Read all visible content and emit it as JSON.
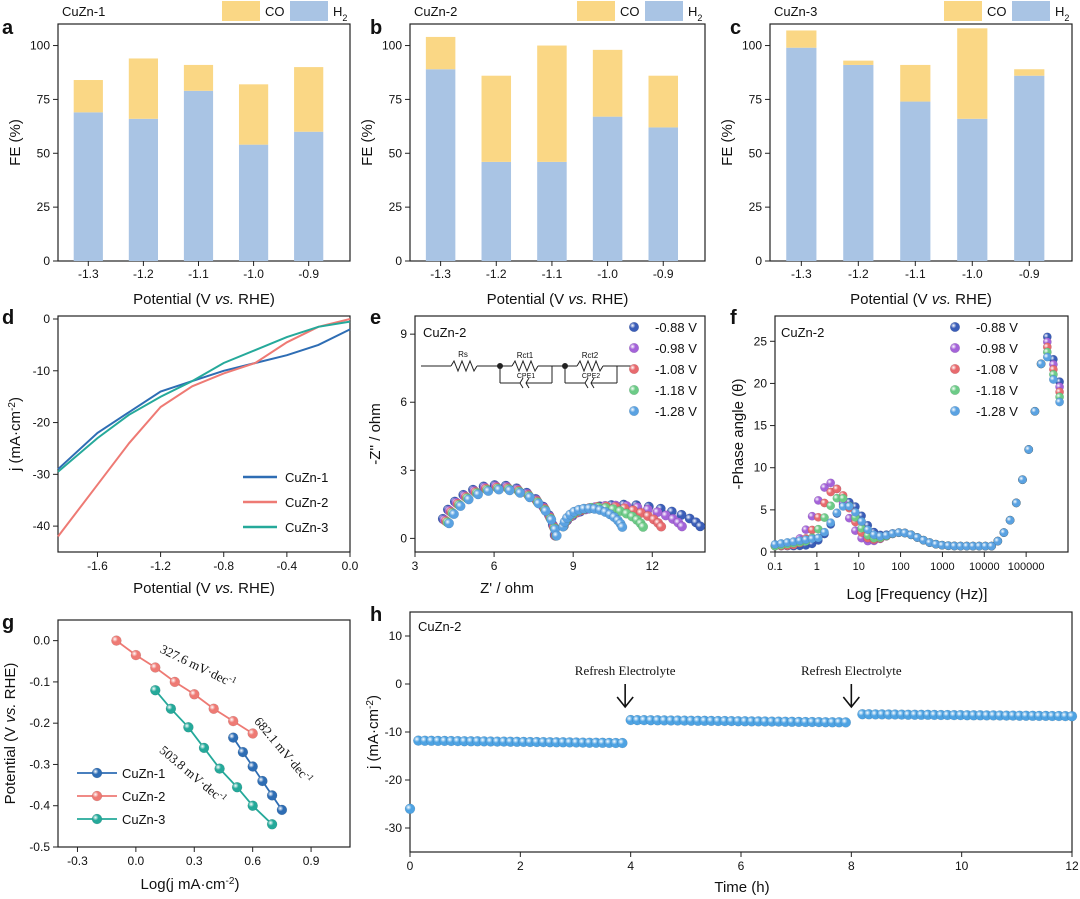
{
  "colors": {
    "co": "#FAD785",
    "h2": "#A9C4E4",
    "cuzn1": "#2E6DB4",
    "cuzn2": "#EE7A74",
    "cuzn3": "#25A99A",
    "eis": [
      "#3A5DB8",
      "#A463D9",
      "#E86A6E",
      "#6CCB87",
      "#5AA2E2"
    ],
    "stab": "#4EA3E3"
  },
  "chart_data": [
    {
      "panel": "a",
      "type": "bar",
      "stacked": true,
      "title": "CuZn-1",
      "xlabel": "Potential (V vs. RHE)",
      "ylabel": "FE (%)",
      "categories": [
        "-1.3",
        "-1.2",
        "-1.1",
        "-1.0",
        "-0.9"
      ],
      "ylim": [
        0,
        110
      ],
      "yticks": [
        "0",
        "25",
        "50",
        "75",
        "100"
      ],
      "legend": [
        "CO",
        "H2"
      ],
      "series": [
        {
          "name": "H2",
          "values": [
            69,
            66,
            79,
            54,
            60
          ]
        },
        {
          "name": "CO",
          "values": [
            15,
            28,
            12,
            28,
            30
          ]
        }
      ]
    },
    {
      "panel": "b",
      "type": "bar",
      "stacked": true,
      "title": "CuZn-2",
      "xlabel": "Potential (V vs. RHE)",
      "ylabel": "FE (%)",
      "categories": [
        "-1.3",
        "-1.2",
        "-1.1",
        "-1.0",
        "-0.9"
      ],
      "ylim": [
        0,
        110
      ],
      "yticks": [
        "0",
        "25",
        "50",
        "75",
        "100"
      ],
      "legend": [
        "CO",
        "H2"
      ],
      "series": [
        {
          "name": "H2",
          "values": [
            89,
            46,
            46,
            67,
            62
          ]
        },
        {
          "name": "CO",
          "values": [
            15,
            40,
            54,
            31,
            24
          ]
        }
      ]
    },
    {
      "panel": "c",
      "type": "bar",
      "stacked": true,
      "title": "CuZn-3",
      "xlabel": "Potential (V vs. RHE)",
      "ylabel": "FE (%)",
      "categories": [
        "-1.3",
        "-1.2",
        "-1.1",
        "-1.0",
        "-0.9"
      ],
      "ylim": [
        0,
        110
      ],
      "yticks": [
        "0",
        "25",
        "50",
        "75",
        "100"
      ],
      "legend": [
        "CO",
        "H2"
      ],
      "series": [
        {
          "name": "H2",
          "values": [
            99,
            91,
            74,
            66,
            86
          ]
        },
        {
          "name": "CO",
          "values": [
            8,
            2,
            17,
            42,
            3
          ]
        }
      ]
    },
    {
      "panel": "d",
      "type": "line",
      "title": "",
      "xlabel": "Potential (V vs. RHE)",
      "ylabel": "j (mA·cm-2)",
      "xlim": [
        -1.85,
        0.0
      ],
      "ylim": [
        -45,
        0
      ],
      "xticks": [
        "-1.6",
        "-1.2",
        "-0.8",
        "-0.4",
        "0.0"
      ],
      "yticks": [
        "0",
        "-10",
        "-20",
        "-30",
        "-40"
      ],
      "series": [
        {
          "name": "CuZn-1",
          "x": [
            -1.85,
            -1.6,
            -1.4,
            -1.2,
            -1.0,
            -0.8,
            -0.6,
            -0.4,
            -0.2,
            0.0
          ],
          "y": [
            -29,
            -22,
            -18,
            -14,
            -12,
            -10,
            -8.5,
            -7,
            -5,
            -2
          ]
        },
        {
          "name": "CuZn-2",
          "x": [
            -1.85,
            -1.6,
            -1.4,
            -1.2,
            -1.0,
            -0.8,
            -0.6,
            -0.4,
            -0.2,
            0.0
          ],
          "y": [
            -42,
            -32,
            -24,
            -17,
            -13,
            -10.5,
            -8.5,
            -4.5,
            -1.5,
            0
          ]
        },
        {
          "name": "CuZn-3",
          "x": [
            -1.85,
            -1.6,
            -1.4,
            -1.2,
            -1.0,
            -0.8,
            -0.6,
            -0.4,
            -0.2,
            0.0
          ],
          "y": [
            -29.5,
            -23,
            -18.5,
            -15,
            -12,
            -8.5,
            -6,
            -3.5,
            -1.5,
            -0.5
          ]
        }
      ]
    },
    {
      "panel": "e",
      "type": "scatter",
      "title": "CuZn-2",
      "xlabel": "Z' / ohm",
      "ylabel": "-Z'' / ohm",
      "xlim": [
        3,
        14
      ],
      "ylim": [
        -0.6,
        9.8
      ],
      "xticks": [
        "3",
        "6",
        "9",
        "12"
      ],
      "yticks": [
        "0",
        "3",
        "6",
        "9"
      ],
      "circuit_labels": [
        "Rs",
        "Rct1",
        "CPE1",
        "Rct2",
        "CPE2"
      ],
      "series": [
        {
          "name": "-0.88 V",
          "end_x": 13.6
        },
        {
          "name": "-0.98 V",
          "end_x": 12.9
        },
        {
          "name": "-1.08 V",
          "end_x": 12.1
        },
        {
          "name": "-1.18 V",
          "end_x": 11.4
        },
        {
          "name": "-1.28 V",
          "end_x": 10.6
        }
      ]
    },
    {
      "panel": "f",
      "type": "scatter",
      "title": "CuZn-2",
      "xlabel": "Log [Frequency (Hz)]",
      "ylabel": "-Phase angle (θ)",
      "xlim": [
        0.1,
        1000000
      ],
      "ylim": [
        0,
        28
      ],
      "xticks": [
        "0.1",
        "1",
        "10",
        "100",
        "1000",
        "10000",
        "100000"
      ],
      "yticks": [
        "0",
        "5",
        "10",
        "15",
        "20",
        "25"
      ],
      "series": [
        {
          "name": "-0.88 V",
          "peak": 5.2
        },
        {
          "name": "-0.98 V",
          "peak": 7.5
        },
        {
          "name": "-1.08 V",
          "peak": 6.8
        },
        {
          "name": "-1.18 V",
          "peak": 5.8
        },
        {
          "name": "-1.28 V",
          "peak": 4.8
        }
      ]
    },
    {
      "panel": "g",
      "type": "line",
      "title": "",
      "xlabel": "Log(j mA·cm-2)",
      "ylabel": "Potential (V vs. RHE)",
      "xlim": [
        -0.4,
        1.1
      ],
      "ylim": [
        -0.5,
        0.05
      ],
      "xticks": [
        "-0.3",
        "0.0",
        "0.3",
        "0.6",
        "0.9"
      ],
      "yticks": [
        "0.0",
        "-0.1",
        "-0.2",
        "-0.3",
        "-0.4",
        "-0.5"
      ],
      "annotations": [
        "327.6 mV·dec",
        "682.1 mV·dec",
        "503.8 mV·dec"
      ],
      "series": [
        {
          "name": "CuZn-1",
          "x": [
            0.5,
            0.55,
            0.6,
            0.65,
            0.7,
            0.75
          ],
          "y": [
            -0.235,
            -0.27,
            -0.305,
            -0.34,
            -0.375,
            -0.41
          ]
        },
        {
          "name": "CuZn-2",
          "x": [
            -0.1,
            0.0,
            0.1,
            0.2,
            0.3,
            0.4,
            0.5,
            0.6
          ],
          "y": [
            0.0,
            -0.035,
            -0.065,
            -0.1,
            -0.13,
            -0.165,
            -0.195,
            -0.225
          ]
        },
        {
          "name": "CuZn-3",
          "x": [
            0.1,
            0.18,
            0.27,
            0.35,
            0.43,
            0.52,
            0.6,
            0.7
          ],
          "y": [
            -0.12,
            -0.165,
            -0.21,
            -0.26,
            -0.31,
            -0.355,
            -0.4,
            -0.445
          ]
        }
      ]
    },
    {
      "panel": "h",
      "type": "scatter",
      "title": "CuZn-2",
      "xlabel": "Time (h)",
      "ylabel": "j (mA·cm-2)",
      "xlim": [
        0,
        12
      ],
      "ylim": [
        -35,
        15
      ],
      "xticks": [
        "0",
        "2",
        "4",
        "6",
        "8",
        "10",
        "12"
      ],
      "yticks": [
        "10",
        "0",
        "-10",
        "-20",
        "-30"
      ],
      "annotations": [
        {
          "text": "Refresh Electrolyte",
          "x": 3.9
        },
        {
          "text": "Refresh Electrolyte",
          "x": 8.0
        }
      ],
      "segments": [
        {
          "x0": 0.15,
          "x1": 3.85,
          "y0": -11.8,
          "y1": -12.3,
          "n": 32
        },
        {
          "x0": 4.0,
          "x1": 7.9,
          "y0": -7.5,
          "y1": -8.0,
          "n": 33
        },
        {
          "x0": 8.2,
          "x1": 12.0,
          "y0": -6.3,
          "y1": -6.7,
          "n": 33
        }
      ],
      "start_point": {
        "x": 0.0,
        "y": -26
      }
    }
  ],
  "panel_letters": [
    "a",
    "b",
    "c",
    "d",
    "e",
    "f",
    "g",
    "h"
  ]
}
